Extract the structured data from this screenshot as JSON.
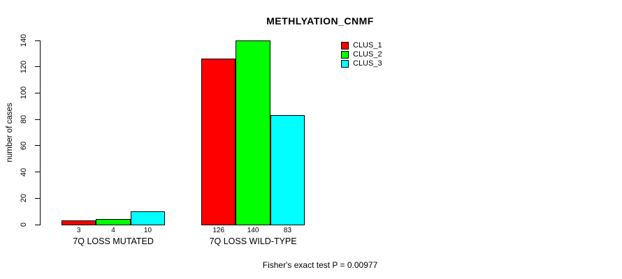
{
  "title": "METHLYATION_CNMF",
  "ylabel": "number of cases",
  "caption": "Fisher's exact test P = 0.00977",
  "chart_data": {
    "type": "bar",
    "title": "METHLYATION_CNMF",
    "xlabel": "",
    "ylabel": "number of cases",
    "categories": [
      "7Q LOSS MUTATED",
      "7Q LOSS WILD-TYPE"
    ],
    "series": [
      {
        "name": "CLUS_1",
        "color": "#ff0000",
        "values": [
          3,
          126
        ]
      },
      {
        "name": "CLUS_2",
        "color": "#00ff00",
        "values": [
          4,
          140
        ]
      },
      {
        "name": "CLUS_3",
        "color": "#00ffff",
        "values": [
          10,
          83
        ]
      }
    ],
    "bar_value_labels": [
      [
        "3",
        "4",
        "10"
      ],
      [
        "126",
        "140",
        "83"
      ]
    ],
    "yticks": [
      0,
      20,
      40,
      60,
      80,
      100,
      120,
      140
    ],
    "ylim": [
      0,
      140
    ],
    "grid": false,
    "legend_position": "top-right-inside",
    "bar_border_color": "#000000",
    "annotation": "Fisher's exact test P = 0.00977"
  }
}
